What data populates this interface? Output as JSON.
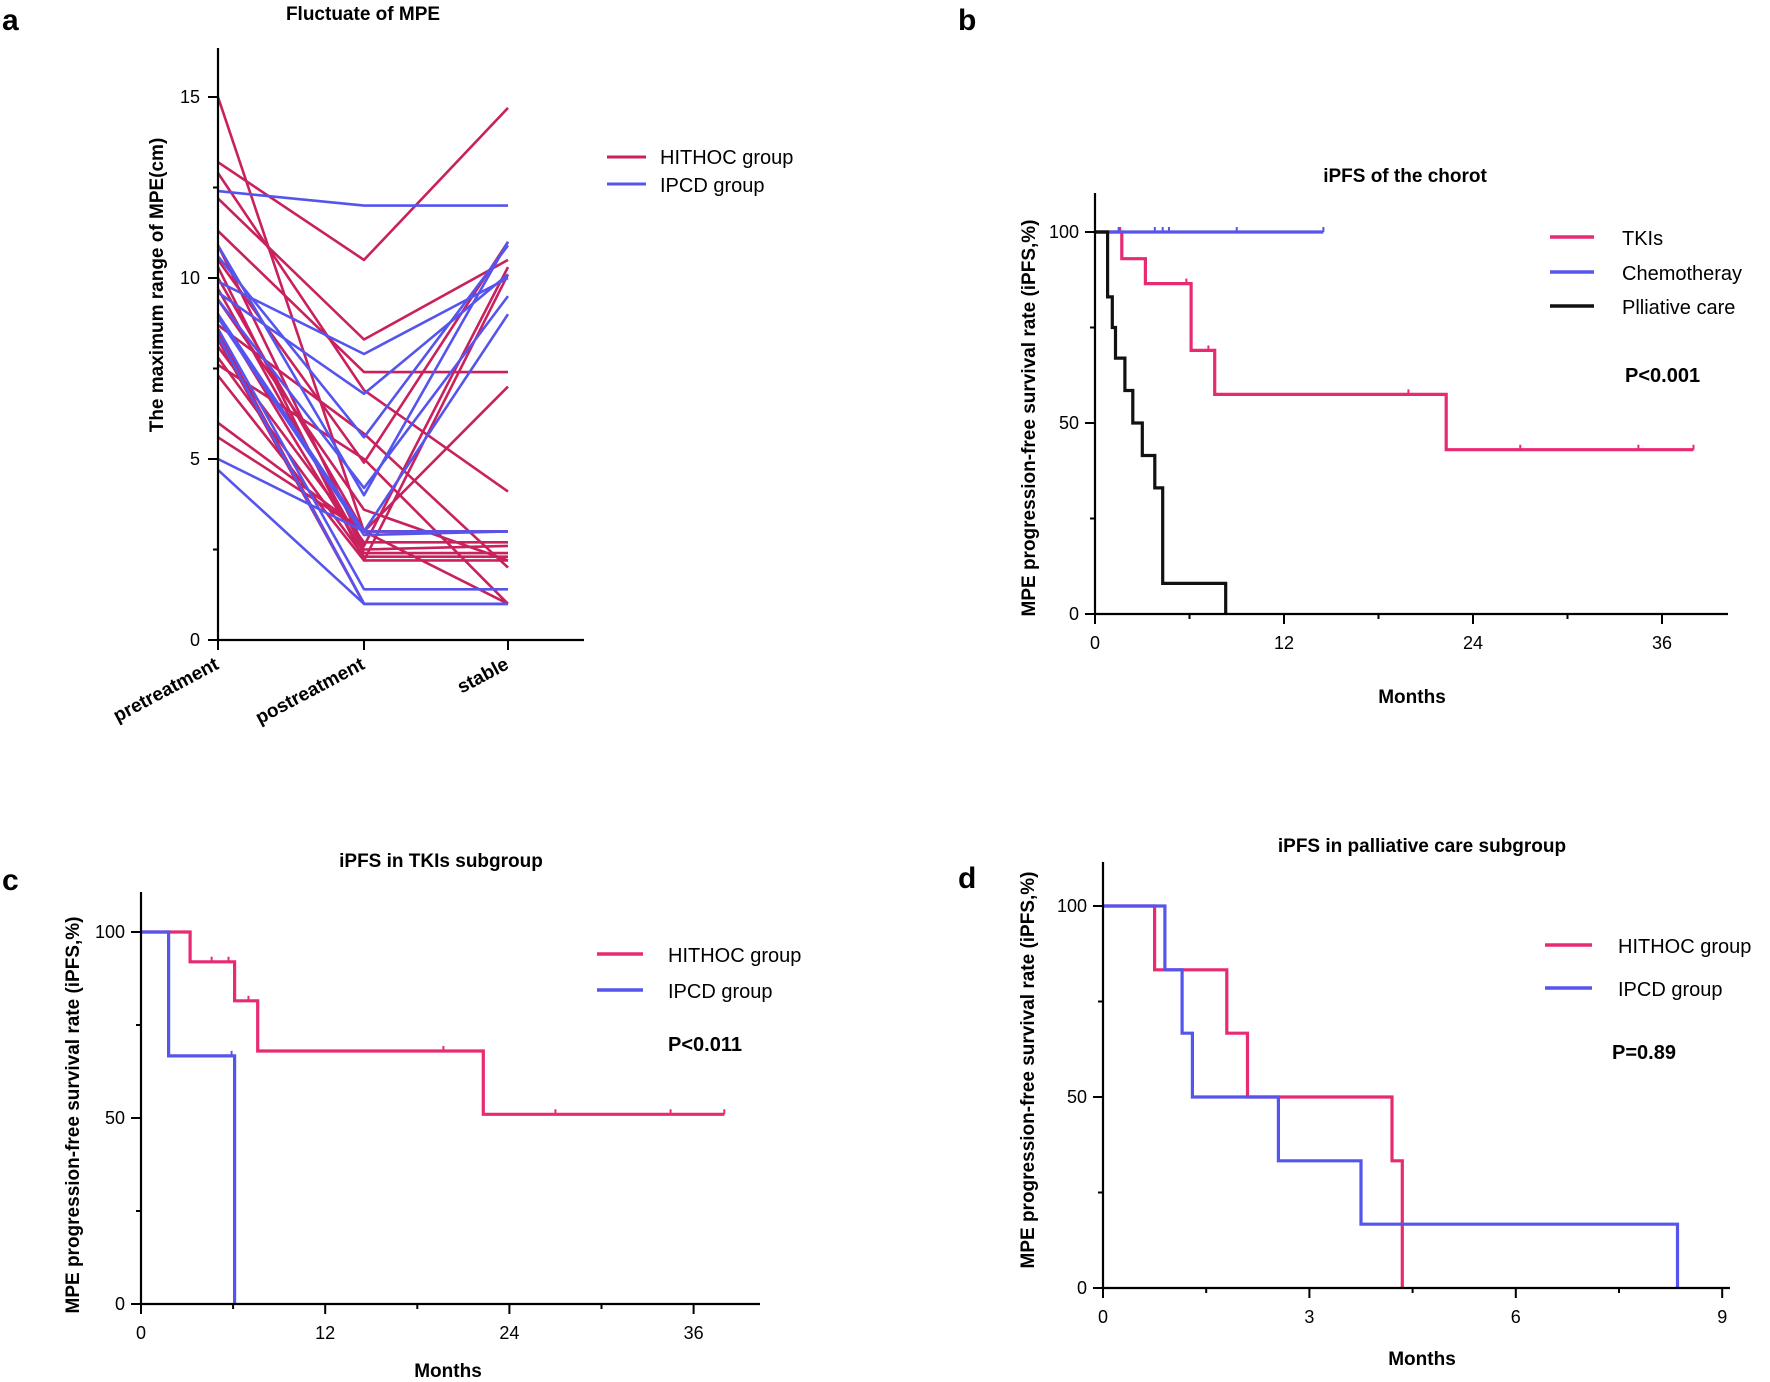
{
  "colors": {
    "hithoc": "#C8215E",
    "ipcd": "#5555EE",
    "tki": "#E82A72",
    "chemo": "#5555EE",
    "palliative": "#111111"
  },
  "chart_data": [
    {
      "id": "a",
      "panel_label": "a",
      "type": "line",
      "title": "Fluctuate of MPE",
      "xlabel": "",
      "ylabel": "The maximum range of MPE(cm)",
      "categories": [
        "pretreatment",
        "postreatment",
        "stable"
      ],
      "ylim": [
        0,
        16
      ],
      "yticks": [
        0,
        5,
        10,
        15
      ],
      "legend": [
        "HITHOC group",
        "IPCD group"
      ],
      "series": [
        {
          "name": "HITHOC group",
          "lines": [
            [
              15.0,
              3.0,
              1.0
            ],
            [
              13.2,
              10.5,
              14.7
            ],
            [
              12.9,
              6.9,
              4.1
            ],
            [
              12.2,
              8.3,
              10.5
            ],
            [
              11.3,
              7.4,
              7.4
            ],
            [
              10.9,
              2.6,
              10.3
            ],
            [
              10.5,
              4.9,
              11.0
            ],
            [
              10.3,
              2.2,
              10.1
            ],
            [
              10.0,
              3.0,
              7.0
            ],
            [
              9.7,
              2.5,
              2.6
            ],
            [
              9.4,
              3.6,
              2.2
            ],
            [
              9.0,
              2.4,
              2.4
            ],
            [
              8.7,
              5.7,
              2.0
            ],
            [
              8.5,
              1.0,
              1.0
            ],
            [
              8.3,
              1.0,
              1.0
            ],
            [
              8.1,
              2.7,
              2.7
            ],
            [
              7.8,
              2.3,
              2.3
            ],
            [
              7.6,
              5.0,
              1.0
            ],
            [
              7.3,
              2.2,
              2.2
            ],
            [
              6.0,
              3.0,
              3.0
            ],
            [
              5.6,
              3.0,
              3.0
            ]
          ]
        },
        {
          "name": "IPCD group",
          "lines": [
            [
              12.4,
              12.0,
              12.0
            ],
            [
              10.9,
              4.0,
              11.0
            ],
            [
              10.6,
              5.6,
              10.9
            ],
            [
              9.9,
              7.9,
              10.0
            ],
            [
              9.6,
              6.8,
              10.1
            ],
            [
              9.4,
              4.2,
              9.5
            ],
            [
              9.0,
              3.0,
              9.0
            ],
            [
              8.9,
              2.9,
              3.0
            ],
            [
              8.6,
              1.4,
              1.4
            ],
            [
              8.4,
              1.0,
              1.0
            ],
            [
              5.0,
              3.0,
              3.0
            ],
            [
              4.7,
              1.0,
              1.0
            ]
          ]
        }
      ]
    },
    {
      "id": "b",
      "panel_label": "b",
      "type": "line",
      "title": "iPFS  of the chorot",
      "xlabel": "Months",
      "ylabel": "MPE progression-free survival rate (iPFS,%)",
      "xlim": [
        0,
        40
      ],
      "ylim": [
        0,
        110
      ],
      "xticks": [
        0,
        12,
        24,
        36
      ],
      "yticks": [
        0,
        50,
        100
      ],
      "annotation": "P<0.001",
      "legend": [
        "TKIs",
        "Chemotheray",
        "Plliative care"
      ],
      "series": [
        {
          "name": "TKIs",
          "x": [
            0,
            1.7,
            1.7,
            3.2,
            3.2,
            6.1,
            6.1,
            7.6,
            7.6,
            22.3,
            22.3,
            38.0
          ],
          "y": [
            100,
            100,
            93,
            93,
            86.5,
            86.5,
            69,
            69,
            57.5,
            57.5,
            43,
            43
          ],
          "censored": [
            [
              1.6,
              100
            ],
            [
              5.8,
              86.5
            ],
            [
              7.2,
              69
            ],
            [
              19.9,
              57.5
            ],
            [
              27.0,
              43
            ],
            [
              34.5,
              43
            ],
            [
              38.0,
              43
            ]
          ]
        },
        {
          "name": "Chemotheray",
          "x": [
            0,
            14.5
          ],
          "y": [
            100,
            100
          ],
          "censored": [
            [
              1.5,
              100
            ],
            [
              3.8,
              100
            ],
            [
              4.3,
              100
            ],
            [
              4.7,
              100
            ],
            [
              9.0,
              100
            ],
            [
              14.5,
              100
            ]
          ]
        },
        {
          "name": "Plliative care",
          "x": [
            0,
            0.8,
            0.8,
            1.1,
            1.1,
            1.3,
            1.3,
            1.9,
            1.9,
            2.4,
            2.4,
            3.0,
            3.0,
            3.8,
            3.8,
            4.3,
            4.3,
            8.3,
            8.3
          ],
          "y": [
            100,
            100,
            83,
            83,
            75,
            75,
            67,
            67,
            58.5,
            58.5,
            50,
            50,
            41.5,
            41.5,
            33,
            33,
            8,
            8,
            0
          ],
          "censored": []
        }
      ]
    },
    {
      "id": "c",
      "panel_label": "c",
      "type": "line",
      "title": "iPFS in TKIs subgroup",
      "xlabel": "Months",
      "ylabel": "MPE progression-free survival rate (iPFS,%)",
      "xlim": [
        0,
        40
      ],
      "ylim": [
        0,
        110
      ],
      "xticks": [
        0,
        12,
        24,
        36
      ],
      "yticks": [
        0,
        50,
        100
      ],
      "annotation": "P<0.011",
      "legend": [
        "HITHOC group",
        "IPCD group"
      ],
      "series": [
        {
          "name": "HITHOC group",
          "x": [
            0,
            3.2,
            3.2,
            6.1,
            6.1,
            7.6,
            7.6,
            22.3,
            22.3,
            38.0
          ],
          "y": [
            100,
            100,
            92,
            92,
            81.5,
            81.5,
            68,
            68,
            51,
            51
          ],
          "censored": [
            [
              4.6,
              92
            ],
            [
              5.7,
              92
            ],
            [
              7.0,
              81.5
            ],
            [
              19.7,
              68
            ],
            [
              27.0,
              51
            ],
            [
              34.5,
              51
            ],
            [
              38.0,
              51
            ]
          ]
        },
        {
          "name": "IPCD group",
          "x": [
            0,
            1.8,
            1.8,
            6.1,
            6.1
          ],
          "y": [
            100,
            100,
            66.7,
            66.7,
            0
          ],
          "censored": [
            [
              5.9,
              66.7
            ]
          ]
        }
      ]
    },
    {
      "id": "d",
      "panel_label": "d",
      "type": "line",
      "title": "iPFS in palliative care subgroup",
      "xlabel": "Months",
      "ylabel": "MPE progression-free survival rate (iPFS,%)",
      "xlim": [
        0,
        9.3
      ],
      "ylim": [
        0,
        110
      ],
      "xticks": [
        0,
        3,
        6,
        9
      ],
      "yticks": [
        0,
        50,
        100
      ],
      "annotation": "P=0.89",
      "legend": [
        "HITHOC group",
        "IPCD group"
      ],
      "series": [
        {
          "name": "HITHOC group",
          "x": [
            0,
            0.75,
            0.75,
            1.8,
            1.8,
            2.1,
            2.1,
            4.2,
            4.2,
            4.35,
            4.35
          ],
          "y": [
            100,
            100,
            83.3,
            83.3,
            66.7,
            66.7,
            50,
            50,
            33.3,
            33.3,
            0
          ],
          "censored": []
        },
        {
          "name": "IPCD group",
          "x": [
            0,
            0.9,
            0.9,
            1.15,
            1.15,
            1.3,
            1.3,
            2.55,
            2.55,
            3.75,
            3.75,
            8.35,
            8.35
          ],
          "y": [
            100,
            100,
            83.3,
            83.3,
            66.7,
            66.7,
            50,
            50,
            33.3,
            33.3,
            16.7,
            16.7,
            0
          ],
          "censored": []
        }
      ]
    }
  ]
}
